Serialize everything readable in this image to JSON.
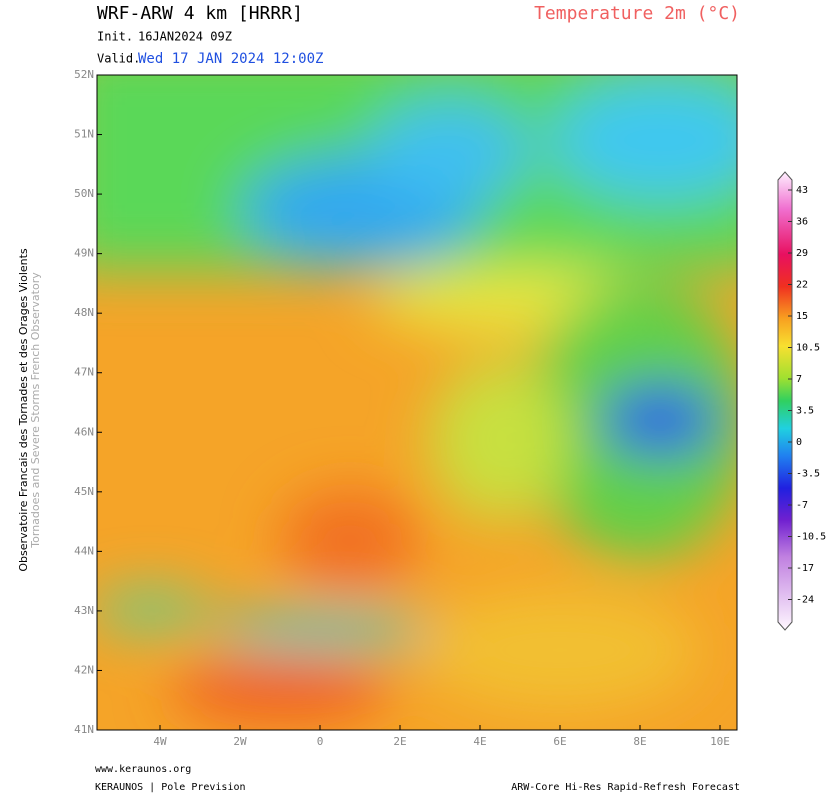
{
  "header": {
    "model": "WRF-ARW 4 km [HRRR]",
    "parameter": "Temperature 2m (°C)",
    "init_label": "Init.",
    "init": "16JAN2024 09Z",
    "valid_label": "Valid.",
    "valid": "Wed 17 JAN 2024 12:00Z"
  },
  "side_label": {
    "line1": "Observatoire Francais des Tornades et des Orages Violents",
    "line2": "Tornadoes and Severe Storms French Observatory"
  },
  "map": {
    "lat_ticks": [
      {
        "value": 52,
        "label": "52N"
      },
      {
        "value": 51,
        "label": "51N"
      },
      {
        "value": 50,
        "label": "50N"
      },
      {
        "value": 49,
        "label": "49N"
      },
      {
        "value": 48,
        "label": "48N"
      },
      {
        "value": 47,
        "label": "47N"
      },
      {
        "value": 46,
        "label": "46N"
      },
      {
        "value": 45,
        "label": "45N"
      },
      {
        "value": 44,
        "label": "44N"
      },
      {
        "value": 43,
        "label": "43N"
      },
      {
        "value": 42,
        "label": "42N"
      },
      {
        "value": 41,
        "label": "41N"
      }
    ],
    "lon_ticks": [
      {
        "value": -4,
        "label": "4W"
      },
      {
        "value": -2,
        "label": "2W"
      },
      {
        "value": 0,
        "label": "0"
      },
      {
        "value": 2,
        "label": "2E"
      },
      {
        "value": 4,
        "label": "4E"
      },
      {
        "value": 6,
        "label": "6E"
      },
      {
        "value": 8,
        "label": "8E"
      },
      {
        "value": 10,
        "label": "10E"
      }
    ]
  },
  "colorbar": {
    "ticks": [
      43,
      36,
      29,
      22,
      15,
      10.5,
      7,
      3.5,
      0,
      -3.5,
      -7,
      -10.5,
      -17,
      -24
    ]
  },
  "footer": {
    "site": "www.keraunos.org",
    "brand": "KERAUNOS | Pole Prevision",
    "model_name": "ARW-Core Hi-Res Rapid-Refresh Forecast"
  }
}
